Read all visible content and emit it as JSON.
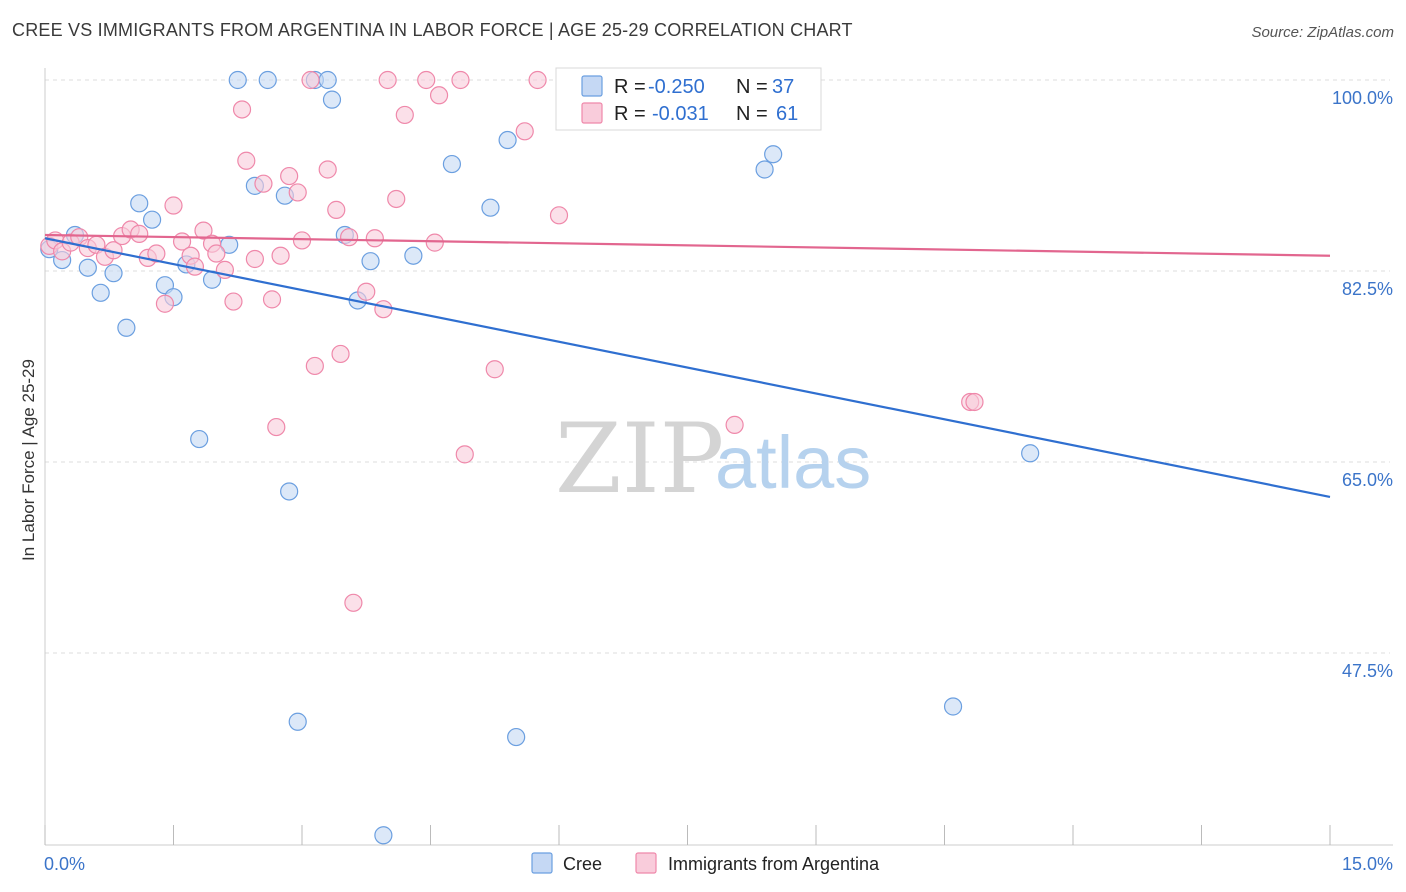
{
  "title": "CREE VS IMMIGRANTS FROM ARGENTINA IN LABOR FORCE | AGE 25-29 CORRELATION CHART",
  "source": "Source: ZipAtlas.com",
  "watermark": {
    "zip": "ZIP",
    "atlas": "atlas"
  },
  "colors": {
    "cree": "#6b9fe0",
    "cree_fill": "#c5d8f4",
    "argentina": "#ef88aa",
    "argentina_fill": "#f9ccdb",
    "cree_line": "#2f6fd0",
    "argentina_line": "#e2668f"
  },
  "chart_data": {
    "type": "scatter",
    "ylabel": "In Labor Force | Age 25-29",
    "xlim": [
      0,
      15
    ],
    "ylim": [
      30,
      102
    ],
    "x_tick_labels": [
      "0.0%",
      "15.0%"
    ],
    "y_ticks": [
      47.5,
      65.0,
      82.5,
      100.0
    ],
    "y_tick_labels": [
      "47.5%",
      "65.0%",
      "82.5%",
      "100.0%"
    ],
    "legend": [
      {
        "name": "Cree",
        "r_label": "R =",
        "r_value": "-0.250",
        "n_label": "N =",
        "n_value": "37"
      },
      {
        "name": "Immigrants from Argentina",
        "r_label": "R =",
        "r_value": "-0.031",
        "n_label": "N =",
        "n_value": "61"
      }
    ],
    "series": [
      {
        "name": "Cree",
        "trend": {
          "x": [
            0,
            15
          ],
          "y": [
            85.5,
            61.8
          ]
        },
        "points": [
          [
            0.05,
            84.5
          ],
          [
            0.2,
            83.5
          ],
          [
            0.35,
            85.8
          ],
          [
            0.5,
            82.8
          ],
          [
            0.65,
            80.5
          ],
          [
            0.8,
            82.3
          ],
          [
            0.95,
            77.3
          ],
          [
            1.1,
            88.7
          ],
          [
            1.25,
            87.2
          ],
          [
            1.4,
            81.2
          ],
          [
            1.5,
            80.1
          ],
          [
            1.65,
            83.1
          ],
          [
            1.8,
            67.1
          ],
          [
            1.95,
            81.7
          ],
          [
            2.15,
            84.9
          ],
          [
            2.25,
            100
          ],
          [
            2.45,
            90.3
          ],
          [
            2.6,
            100
          ],
          [
            2.8,
            89.4
          ],
          [
            2.85,
            62.3
          ],
          [
            2.95,
            41.2
          ],
          [
            3.15,
            100
          ],
          [
            3.3,
            100
          ],
          [
            3.35,
            98.2
          ],
          [
            3.5,
            85.8
          ],
          [
            3.65,
            79.8
          ],
          [
            3.8,
            83.4
          ],
          [
            3.95,
            30.8
          ],
          [
            4.3,
            83.9
          ],
          [
            4.75,
            92.3
          ],
          [
            5.2,
            88.3
          ],
          [
            5.5,
            39.8
          ],
          [
            5.4,
            94.5
          ],
          [
            8.4,
            91.8
          ],
          [
            8.5,
            93.2
          ],
          [
            10.6,
            42.6
          ],
          [
            11.5,
            65.8
          ]
        ]
      },
      {
        "name": "Immigrants from Argentina",
        "trend": {
          "x": [
            0,
            15
          ],
          "y": [
            85.8,
            83.9
          ]
        },
        "points": [
          [
            0.05,
            84.8
          ],
          [
            0.12,
            85.3
          ],
          [
            0.2,
            84.3
          ],
          [
            0.3,
            85.1
          ],
          [
            0.4,
            85.6
          ],
          [
            0.5,
            84.6
          ],
          [
            0.6,
            84.9
          ],
          [
            0.7,
            83.8
          ],
          [
            0.8,
            84.4
          ],
          [
            0.9,
            85.7
          ],
          [
            1.0,
            86.3
          ],
          [
            1.1,
            85.9
          ],
          [
            1.2,
            83.7
          ],
          [
            1.3,
            84.1
          ],
          [
            1.4,
            79.5
          ],
          [
            1.5,
            88.5
          ],
          [
            1.6,
            85.2
          ],
          [
            1.7,
            83.9
          ],
          [
            1.75,
            82.9
          ],
          [
            1.85,
            86.2
          ],
          [
            1.95,
            85.0
          ],
          [
            2.0,
            84.1
          ],
          [
            2.1,
            82.6
          ],
          [
            2.2,
            79.7
          ],
          [
            2.3,
            97.3
          ],
          [
            2.35,
            92.6
          ],
          [
            2.45,
            83.6
          ],
          [
            2.55,
            90.5
          ],
          [
            2.65,
            79.9
          ],
          [
            2.7,
            68.2
          ],
          [
            2.75,
            83.9
          ],
          [
            2.85,
            91.2
          ],
          [
            2.95,
            89.7
          ],
          [
            3.0,
            85.3
          ],
          [
            3.1,
            100
          ],
          [
            3.15,
            73.8
          ],
          [
            3.3,
            91.8
          ],
          [
            3.4,
            88.1
          ],
          [
            3.45,
            74.9
          ],
          [
            3.55,
            85.6
          ],
          [
            3.6,
            52.1
          ],
          [
            3.75,
            80.6
          ],
          [
            3.85,
            85.5
          ],
          [
            3.95,
            79.0
          ],
          [
            4.0,
            100
          ],
          [
            4.1,
            89.1
          ],
          [
            4.2,
            96.8
          ],
          [
            4.45,
            100
          ],
          [
            4.55,
            85.1
          ],
          [
            4.6,
            98.6
          ],
          [
            4.85,
            100
          ],
          [
            4.9,
            65.7
          ],
          [
            5.25,
            73.5
          ],
          [
            5.6,
            95.3
          ],
          [
            5.75,
            100
          ],
          [
            6.0,
            87.6
          ],
          [
            8.05,
            68.4
          ],
          [
            8.95,
            100
          ],
          [
            10.8,
            70.5
          ],
          [
            10.85,
            70.5
          ],
          [
            6.5,
            100
          ]
        ]
      }
    ],
    "bottom_legend": [
      "Cree",
      "Immigrants from Argentina"
    ]
  }
}
